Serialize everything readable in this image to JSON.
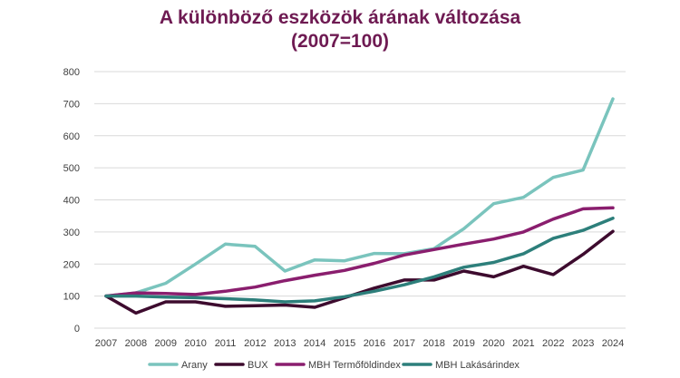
{
  "chart_data": {
    "type": "line",
    "title_line1": "A különböző eszközök árának változása",
    "title_line2": "(2007=100)",
    "xlabel": "",
    "ylabel": "",
    "ylim": [
      0,
      800
    ],
    "y_ticks": [
      "0",
      "100",
      "200",
      "300",
      "400",
      "500",
      "600",
      "700",
      "800"
    ],
    "categories": [
      "2007",
      "2008",
      "2009",
      "2010",
      "2011",
      "2012",
      "2013",
      "2014",
      "2015",
      "2016",
      "2017",
      "2018",
      "2019",
      "2020",
      "2021",
      "2022",
      "2023",
      "2024"
    ],
    "grid": "horizontal",
    "legend_position": "bottom",
    "series": [
      {
        "name": "Arany",
        "color": "#7ac4bd",
        "values": [
          100,
          110,
          140,
          200,
          262,
          255,
          178,
          213,
          210,
          233,
          232,
          248,
          310,
          388,
          408,
          470,
          493,
          715
        ]
      },
      {
        "name": "BUX",
        "color": "#3d0b2e",
        "values": [
          100,
          47,
          82,
          82,
          68,
          70,
          72,
          65,
          95,
          125,
          150,
          150,
          178,
          160,
          193,
          167,
          230,
          302
        ]
      },
      {
        "name": "MBH Termőföldindex",
        "color": "#8a1e6e",
        "values": [
          100,
          110,
          108,
          105,
          115,
          128,
          148,
          165,
          180,
          202,
          228,
          245,
          262,
          278,
          300,
          340,
          372,
          375
        ]
      },
      {
        "name": "MBH Lakásárindex",
        "color": "#2d7f7b",
        "values": [
          100,
          100,
          97,
          95,
          92,
          88,
          82,
          85,
          98,
          115,
          135,
          160,
          190,
          205,
          232,
          280,
          305,
          343
        ]
      }
    ]
  }
}
